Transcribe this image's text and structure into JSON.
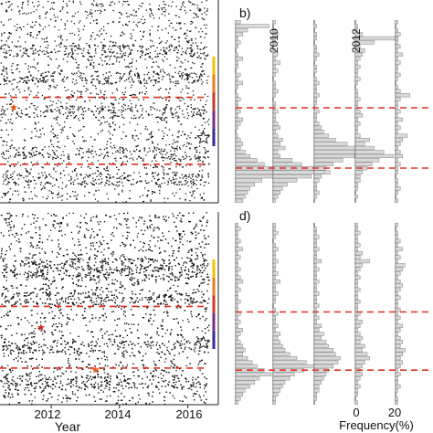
{
  "colors": {
    "dots": "#111111",
    "dashed_line": "#e0301e",
    "bar_fill": "#d9d9d9",
    "bar_edge": "#888888",
    "star_orange": "#e85a1a",
    "star_red": "#d62a1e",
    "time_bar": [
      "#f5c000",
      "#ee7d1a",
      "#c83a2a",
      "#7a2a8c",
      "#3a2a9a"
    ]
  },
  "chart_data": [
    {
      "panel": "a",
      "type": "scatter",
      "xlabel": "",
      "xlim": [
        2010.5,
        2016.6
      ],
      "xticks": [
        2012,
        2014,
        2016
      ],
      "xtick_labels": [
        "2012",
        "2014",
        "2016"
      ],
      "dashed_lines_y": [
        0.52,
        0.19
      ],
      "star_markers": [
        [
          2010.9,
          0.47
        ],
        [
          2016.35,
          0.32
        ]
      ]
    },
    {
      "panel": "b",
      "type": "bar",
      "label": "b)",
      "column_labels": [
        "2010",
        "2012"
      ],
      "dashed_lines_y": [
        0.52,
        0.19
      ],
      "series": [
        {
          "values": [
            2,
            14,
            5,
            3,
            1,
            2,
            1,
            0,
            1,
            3,
            1,
            1,
            0,
            2,
            1,
            3,
            1,
            0,
            1,
            2,
            1,
            1,
            2,
            1,
            3,
            2,
            1,
            0,
            1,
            2,
            3,
            2,
            4,
            6,
            9,
            12,
            18,
            24,
            16,
            11,
            8,
            6,
            5,
            4,
            3
          ]
        },
        {
          "values": [
            1,
            0,
            1,
            2,
            1,
            1,
            0,
            1,
            2,
            1,
            3,
            1,
            2,
            1,
            0,
            1,
            1,
            2,
            1,
            0,
            1,
            1,
            2,
            1,
            1,
            2,
            3,
            1,
            2,
            4,
            3,
            5,
            2,
            3,
            8,
            12,
            18,
            24,
            16,
            10,
            6,
            4,
            3,
            2,
            1
          ]
        },
        {
          "values": [
            0,
            1,
            0,
            1,
            1,
            0,
            1,
            1,
            2,
            1,
            0,
            1,
            1,
            0,
            1,
            2,
            1,
            1,
            2,
            1,
            1,
            0,
            2,
            1,
            1,
            2,
            3,
            4,
            6,
            9,
            14,
            18,
            22,
            17,
            12,
            8,
            5,
            4,
            3,
            2,
            1,
            1,
            2,
            1,
            0
          ]
        },
        {
          "values": [
            0,
            1,
            1,
            3,
            18,
            8,
            2,
            4,
            3,
            2,
            1,
            2,
            1,
            1,
            2,
            1,
            0,
            1,
            1,
            2,
            1,
            1,
            2,
            3,
            1,
            2,
            1,
            1,
            2,
            6,
            4,
            8,
            12,
            16,
            10,
            7,
            5,
            3,
            2,
            2,
            1,
            1,
            0,
            1,
            0
          ]
        },
        {
          "values": [
            1,
            0,
            1,
            2,
            1,
            1,
            2,
            1,
            3,
            1,
            2,
            1,
            1,
            2,
            1,
            0,
            1,
            2,
            6,
            2,
            1,
            1,
            2,
            1,
            3,
            1,
            2,
            1,
            5,
            3,
            2,
            1,
            2,
            3,
            1,
            2,
            1,
            1,
            0,
            1,
            1,
            2,
            1,
            0,
            1
          ]
        }
      ]
    },
    {
      "panel": "c",
      "type": "scatter",
      "xlabel": "Year",
      "xlim": [
        2010.5,
        2016.6
      ],
      "xticks": [
        2012,
        2014,
        2016
      ],
      "xtick_labels": [
        "2012",
        "2014",
        "2016"
      ],
      "dashed_lines_y": [
        0.51,
        0.19
      ],
      "star_markers": [
        [
          2011.7,
          0.4
        ],
        [
          2013.3,
          0.18
        ],
        [
          2016.35,
          0.32
        ]
      ]
    },
    {
      "panel": "d",
      "type": "bar",
      "label": "d)",
      "xlabel": "Frequency(%)",
      "xtick_labels": [
        "0",
        "20"
      ],
      "dashed_lines_y": [
        0.51,
        0.19
      ],
      "series": [
        {
          "values": [
            1,
            2,
            1,
            1,
            2,
            1,
            3,
            1,
            2,
            1,
            1,
            2,
            1,
            2,
            3,
            1,
            2,
            1,
            1,
            2,
            1,
            1,
            2,
            1,
            2,
            1,
            3,
            2,
            1,
            2,
            3,
            4,
            3,
            5,
            7,
            9,
            12,
            15,
            10,
            8,
            6,
            4,
            3,
            2,
            1
          ]
        },
        {
          "values": [
            1,
            1,
            2,
            1,
            0,
            1,
            2,
            1,
            1,
            2,
            1,
            1,
            2,
            1,
            3,
            1,
            1,
            2,
            1,
            1,
            0,
            1,
            2,
            1,
            1,
            2,
            1,
            3,
            2,
            3,
            4,
            5,
            7,
            10,
            14,
            18,
            13,
            9,
            7,
            5,
            4,
            3,
            2,
            1,
            1
          ]
        },
        {
          "values": [
            0,
            1,
            1,
            2,
            1,
            1,
            2,
            1,
            1,
            3,
            1,
            2,
            1,
            1,
            2,
            1,
            1,
            2,
            1,
            1,
            2,
            1,
            1,
            2,
            1,
            3,
            2,
            4,
            3,
            5,
            6,
            8,
            9,
            11,
            10,
            8,
            6,
            5,
            4,
            3,
            2,
            2,
            1,
            1,
            0
          ]
        },
        {
          "values": [
            1,
            1,
            2,
            1,
            1,
            2,
            1,
            3,
            2,
            6,
            3,
            2,
            1,
            2,
            1,
            1,
            2,
            1,
            1,
            2,
            1,
            1,
            2,
            1,
            3,
            2,
            1,
            2,
            3,
            2,
            4,
            3,
            5,
            6,
            4,
            3,
            2,
            3,
            2,
            1,
            2,
            1,
            1,
            0,
            1
          ]
        },
        {
          "values": [
            1,
            0,
            1,
            1,
            2,
            1,
            3,
            1,
            2,
            1,
            4,
            3,
            2,
            1,
            2,
            3,
            2,
            1,
            2,
            1,
            1,
            2,
            1,
            2,
            1,
            3,
            2,
            1,
            2,
            3,
            2,
            4,
            3,
            2,
            3,
            2,
            1,
            2,
            1,
            1,
            2,
            1,
            0,
            1,
            1
          ]
        }
      ]
    }
  ]
}
